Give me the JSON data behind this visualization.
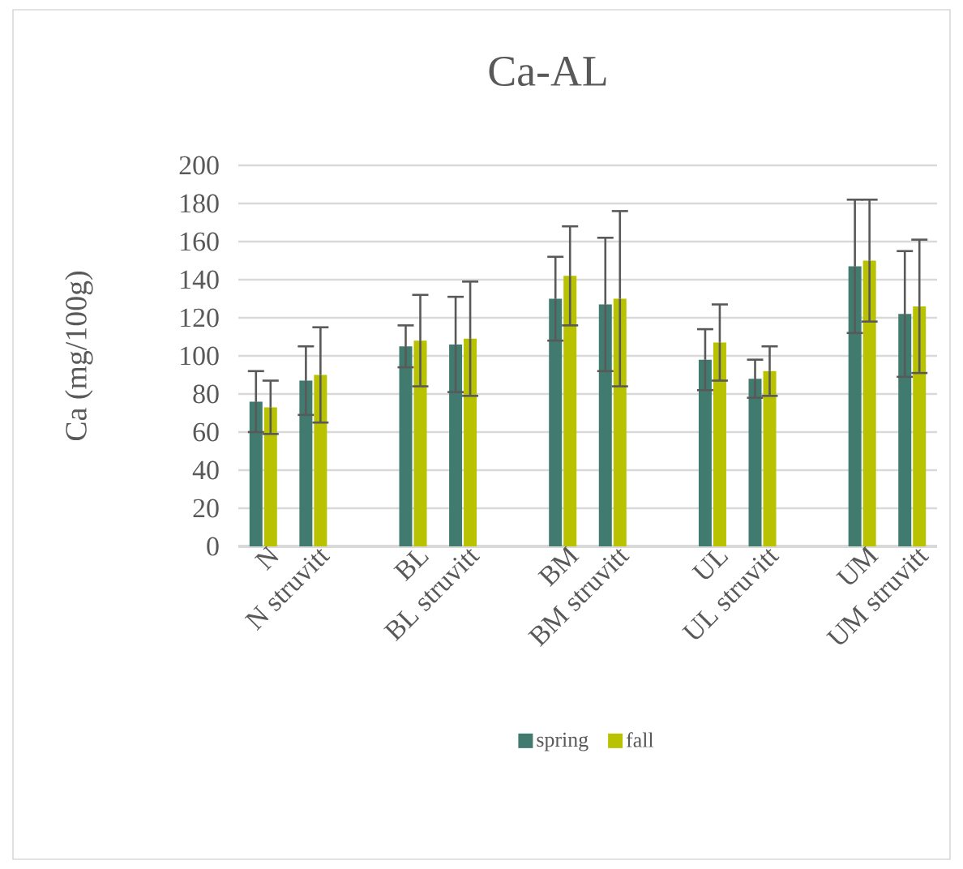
{
  "chart_data": {
    "type": "bar",
    "title": "Ca-AL",
    "ylabel": "Ca (mg/100g)",
    "categories": [
      "N",
      "N struvitt",
      null,
      "BL",
      "BL struvitt",
      null,
      "BM",
      "BM struvitt",
      null,
      "UL",
      "UL struvitt",
      null,
      "UM",
      "UM struvitt"
    ],
    "series": [
      {
        "name": "spring",
        "color": "#417b70",
        "values": [
          76,
          87,
          null,
          105,
          106,
          null,
          130,
          127,
          null,
          98,
          88,
          null,
          147,
          122
        ],
        "errors": [
          16,
          18,
          null,
          11,
          25,
          null,
          22,
          35,
          null,
          16,
          10,
          null,
          35,
          33
        ]
      },
      {
        "name": "fall",
        "color": "#b8c200",
        "values": [
          73,
          90,
          null,
          108,
          109,
          null,
          142,
          130,
          null,
          107,
          92,
          null,
          150,
          126
        ],
        "errors": [
          14,
          25,
          null,
          24,
          30,
          null,
          26,
          46,
          null,
          20,
          13,
          null,
          32,
          35
        ]
      }
    ],
    "ylim": [
      0,
      200
    ],
    "yticks": [
      0,
      20,
      40,
      60,
      80,
      100,
      120,
      140,
      160,
      180,
      200
    ],
    "grid": "y",
    "legend": "bottom"
  }
}
